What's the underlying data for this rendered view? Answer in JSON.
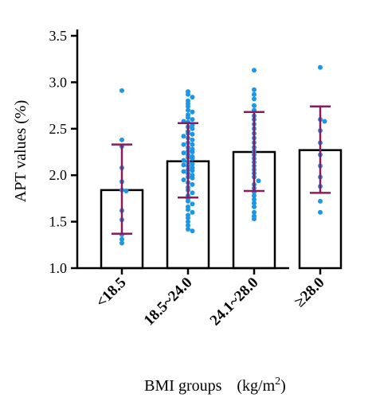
{
  "chart_data": {
    "type": "bar",
    "xlabel": "BMI groups",
    "xlabel_unit": "(kg/m",
    "xlabel_unit_sup": "2",
    "xlabel_unit_close": ")",
    "ylabel": "APT values (%)",
    "ylim": [
      1.0,
      3.5
    ],
    "yticks": [
      "1.0",
      "1.5",
      "2.0",
      "2.5",
      "3.0",
      "3.5"
    ],
    "categories": [
      "<18.5",
      "18.5~24.0",
      "24.1~28.0",
      "≥28.0"
    ],
    "values": [
      1.84,
      2.15,
      2.25,
      2.27
    ],
    "error_low": [
      1.37,
      1.76,
      1.83,
      1.81
    ],
    "error_high": [
      2.33,
      2.56,
      2.68,
      2.74
    ],
    "colors": {
      "bar_edge": "#000000",
      "bar_fill": "#ffffff",
      "error": "#8b1a5e",
      "points": "#1e96e6"
    },
    "points": [
      [
        2.91,
        2.38,
        2.31,
        2.08,
        1.93,
        1.84,
        1.83,
        1.62,
        1.52,
        1.36,
        1.31,
        1.27
      ],
      [
        2.9,
        2.87,
        2.84,
        2.8,
        2.77,
        2.74,
        2.7,
        2.68,
        2.65,
        2.62,
        2.6,
        2.57,
        2.54,
        2.52,
        2.5,
        2.47,
        2.45,
        2.42,
        2.4,
        2.38,
        2.35,
        2.33,
        2.3,
        2.28,
        2.26,
        2.24,
        2.22,
        2.2,
        2.18,
        2.16,
        2.14,
        2.12,
        2.1,
        2.08,
        2.06,
        2.04,
        2.02,
        2.0,
        1.98,
        1.95,
        1.92,
        1.9,
        1.87,
        1.84,
        1.81,
        1.78,
        1.75,
        1.72,
        1.69,
        1.66,
        1.63,
        1.6,
        1.57,
        1.54,
        1.5,
        1.46,
        1.42,
        1.4,
        2.25,
        2.19,
        2.11,
        2.05,
        1.97,
        2.33,
        2.44,
        2.58
      ],
      [
        3.13,
        2.92,
        2.87,
        2.82,
        2.75,
        2.7,
        2.64,
        2.6,
        2.55,
        2.5,
        2.45,
        2.4,
        2.35,
        2.3,
        2.26,
        2.22,
        2.18,
        2.14,
        2.1,
        2.06,
        2.02,
        1.98,
        1.94,
        1.9,
        1.86,
        1.82,
        1.78,
        1.74,
        1.7,
        1.66,
        1.6,
        1.56,
        1.53
      ],
      [
        3.16,
        2.6,
        2.58,
        2.48,
        2.35,
        2.22,
        2.1,
        1.98,
        1.88,
        1.72,
        1.6
      ]
    ]
  }
}
